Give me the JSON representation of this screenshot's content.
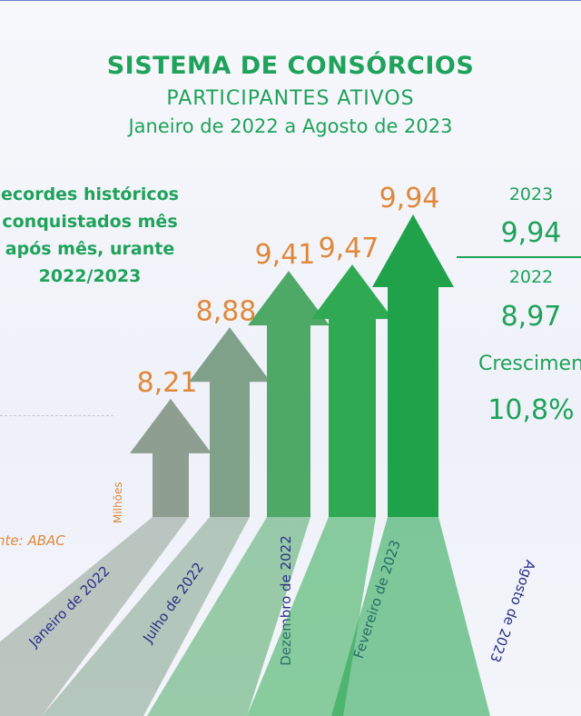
{
  "title": "SISTEMA DE CONSÓRCIOS",
  "subtitle": "PARTICIPANTES ATIVOS",
  "period": "Janeiro de 2022 a Agosto de 2023",
  "note": "ecordes históricos conquistados mês após mês, urante 2022/2023",
  "unit": "Milhões",
  "source": "nte: ABAC",
  "comparison": {
    "year_a": "2023",
    "value_a": "9,94",
    "year_b": "2022",
    "value_b": "8,97",
    "growth_label": "Crescimen",
    "growth_value": "10,8%"
  },
  "colors": {
    "arrow": [
      "#8e9f92",
      "#7fa089",
      "#4ea866",
      "#2faa52",
      "#1fa24a"
    ],
    "value_label": "#e0883a",
    "text_green": "#1fa259",
    "axis_label": "#2a2f86"
  },
  "chart_data": {
    "type": "bar",
    "categories": [
      "Janeiro de 2022",
      "Julho de 2022",
      "Dezembro de 2022",
      "Fevereiro de 2023",
      "Agosto de 2023"
    ],
    "values": [
      8.21,
      8.88,
      9.41,
      9.47,
      9.94
    ],
    "value_labels": [
      "8,21",
      "8,88",
      "9,41",
      "9,47",
      "9,94"
    ],
    "ylabel": "Milhões"
  }
}
